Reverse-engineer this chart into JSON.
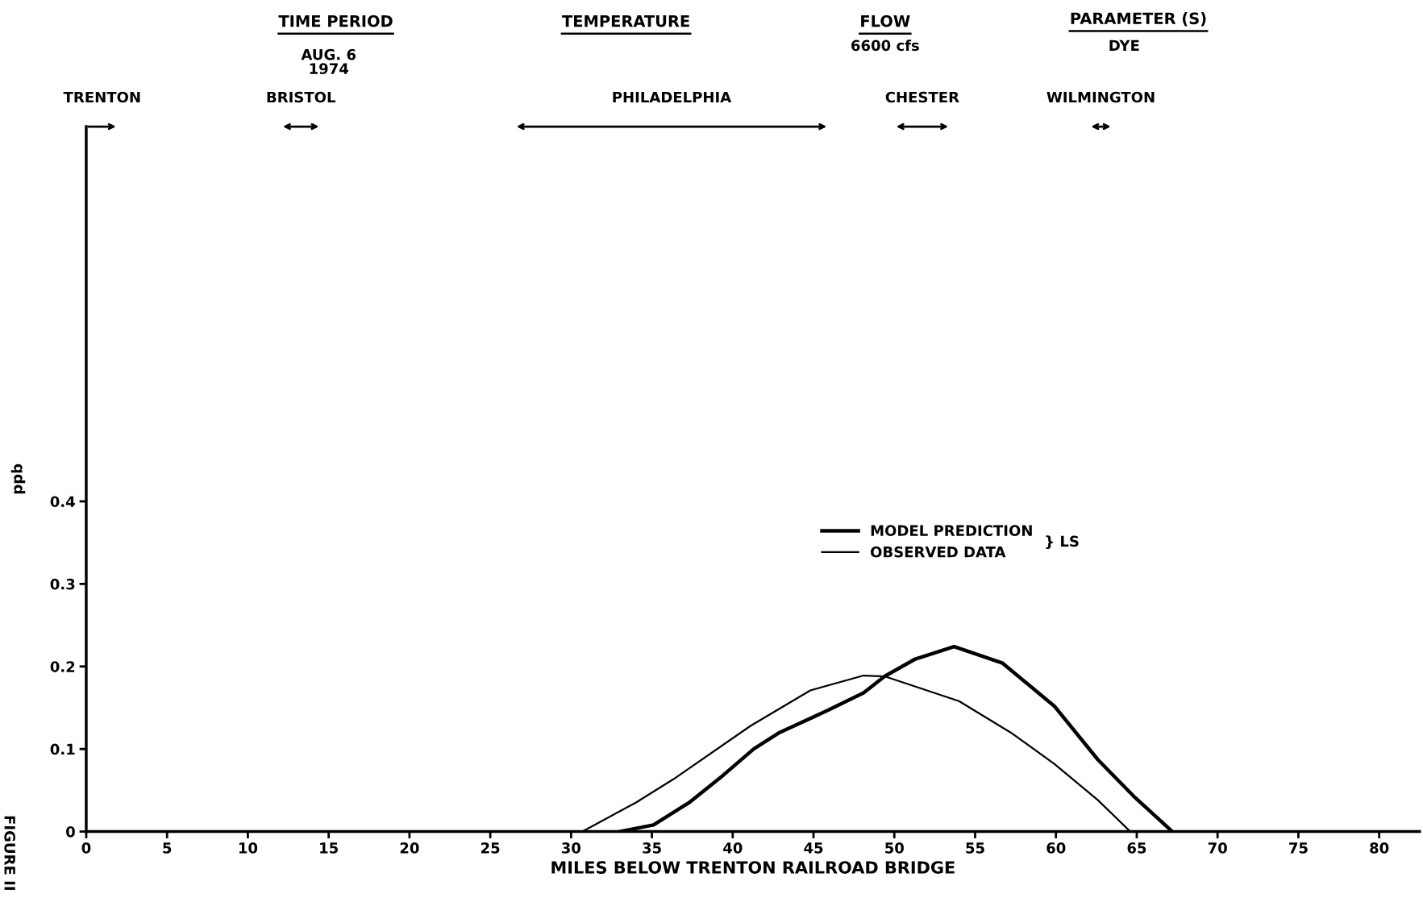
{
  "chart_data": {
    "type": "line",
    "xlabel": "MILES BELOW TRENTON RAILROAD BRIDGE",
    "ylabel": "ppb",
    "xlim": [
      0,
      82.5
    ],
    "xticks": [
      0,
      5,
      10,
      15,
      20,
      25,
      30,
      35,
      40,
      45,
      50,
      55,
      60,
      65,
      70,
      75,
      80
    ],
    "ylim": [
      0,
      0.854
    ],
    "yticks": [
      0,
      0.1,
      0.2,
      0.3,
      0.4
    ],
    "series": [
      {
        "name": "MODEL PREDICTION",
        "color": "#000000",
        "x": [
          33.0,
          35.1,
          37.3,
          39.4,
          41.3,
          42.9,
          45.9,
          48.1,
          49.4,
          51.3,
          53.7,
          56.7,
          59.9,
          62.6,
          64.8,
          67.2
        ],
        "values": [
          0,
          0.008,
          0.035,
          0.068,
          0.1,
          0.12,
          0.147,
          0.168,
          0.188,
          0.209,
          0.224,
          0.204,
          0.152,
          0.087,
          0.043,
          0
        ]
      },
      {
        "name": "OBSERVED DATA",
        "color": "#000000",
        "x": [
          30.7,
          34.0,
          36.3,
          41.1,
          44.8,
          48.1,
          49.4,
          54.0,
          57.2,
          59.9,
          62.6,
          64.6
        ],
        "values": [
          0,
          0.035,
          0.063,
          0.128,
          0.171,
          0.189,
          0.188,
          0.158,
          0.12,
          0.082,
          0.038,
          0
        ]
      }
    ],
    "legend": "center right",
    "legend_title": "} LS",
    "grid": false,
    "marker": "none",
    "line_style": "solid",
    "annotations": [
      "TIME PERIOD",
      "AUG. 6\n1974",
      "TEMPERATURE",
      "FLOW",
      "6600 cfs",
      "PARAMETER (S)",
      "DYE",
      "FIGURE II",
      "TRENTON",
      "BRISTOL",
      "PHILADELPHIA",
      "CHESTER",
      "WILMINGTON"
    ]
  }
}
